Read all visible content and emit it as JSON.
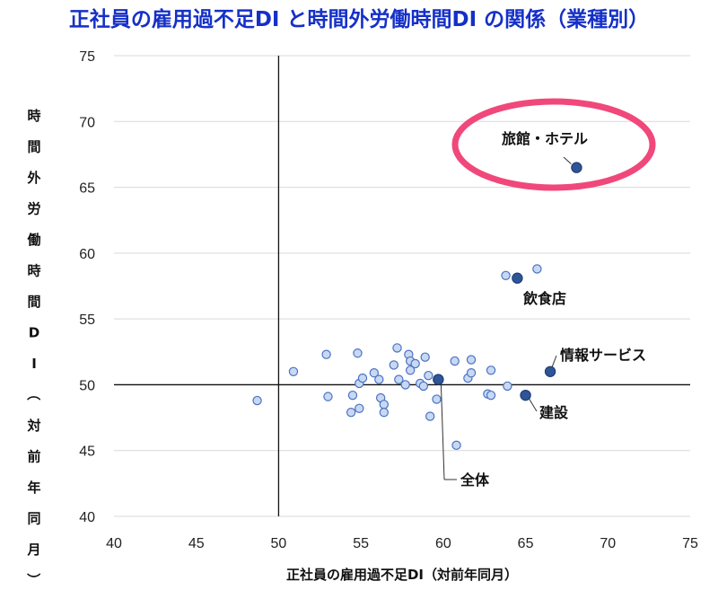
{
  "chart_data": {
    "type": "scatter",
    "title": "正社員の雇用過不足DI と時間外労働時間DI の関係（業種別）",
    "xlabel": "正社員の雇用過不足DI（対前年同月）",
    "ylabel": "時間外労働時間DI（対前年同月）",
    "xlim": [
      40,
      75
    ],
    "ylim": [
      40,
      75
    ],
    "xticks": [
      "40",
      "45",
      "50",
      "55",
      "60",
      "65",
      "70",
      "75"
    ],
    "yticks": [
      "40",
      "45",
      "50",
      "55",
      "60",
      "65",
      "70",
      "75"
    ],
    "reference_lines": {
      "x": 50,
      "y": 50
    },
    "grid": "horizontal",
    "colors": {
      "title": "#1530c8",
      "point_fill": "#c9d8f2",
      "point_edge": "#4a72c4",
      "highlight_fill": "#2f5597",
      "highlight_edge": "#1f3d78",
      "ellipse": "#f0487a",
      "grid": "#d9d9d9"
    },
    "series": [
      {
        "points": [
          [
            48.7,
            48.8
          ],
          [
            50.9,
            51.0
          ],
          [
            52.9,
            52.3
          ],
          [
            53.0,
            49.1
          ],
          [
            54.4,
            47.9
          ],
          [
            54.5,
            49.2
          ],
          [
            54.8,
            52.4
          ],
          [
            54.9,
            48.2
          ],
          [
            54.9,
            50.1
          ],
          [
            55.1,
            50.5
          ],
          [
            55.8,
            50.9
          ],
          [
            56.1,
            50.4
          ],
          [
            56.2,
            49.0
          ],
          [
            56.4,
            48.5
          ],
          [
            56.4,
            47.9
          ],
          [
            57.0,
            51.5
          ],
          [
            57.2,
            52.8
          ],
          [
            57.3,
            50.4
          ],
          [
            57.7,
            50.0
          ],
          [
            57.9,
            52.3
          ],
          [
            58.0,
            51.1
          ],
          [
            58.0,
            51.8
          ],
          [
            58.3,
            51.6
          ],
          [
            58.6,
            50.1
          ],
          [
            58.8,
            49.9
          ],
          [
            58.9,
            52.1
          ],
          [
            59.1,
            50.7
          ],
          [
            59.2,
            47.6
          ],
          [
            59.6,
            48.9
          ],
          [
            60.7,
            51.8
          ],
          [
            60.8,
            45.4
          ],
          [
            61.5,
            50.5
          ],
          [
            61.7,
            51.9
          ],
          [
            61.7,
            50.9
          ],
          [
            62.7,
            49.3
          ],
          [
            62.9,
            49.2
          ],
          [
            62.9,
            51.1
          ],
          [
            63.8,
            58.3
          ],
          [
            63.9,
            49.9
          ],
          [
            65.7,
            58.8
          ]
        ]
      }
    ],
    "highlighted": [
      {
        "label": "旅館・ホテル",
        "x": 68.1,
        "y": 66.5,
        "circled": true
      },
      {
        "label": "飲食店",
        "x": 64.5,
        "y": 58.1
      },
      {
        "label": "情報サービス",
        "x": 66.5,
        "y": 51.0
      },
      {
        "label": "建設",
        "x": 65.0,
        "y": 49.2
      },
      {
        "label": "全体",
        "x": 59.7,
        "y": 50.4
      }
    ]
  }
}
